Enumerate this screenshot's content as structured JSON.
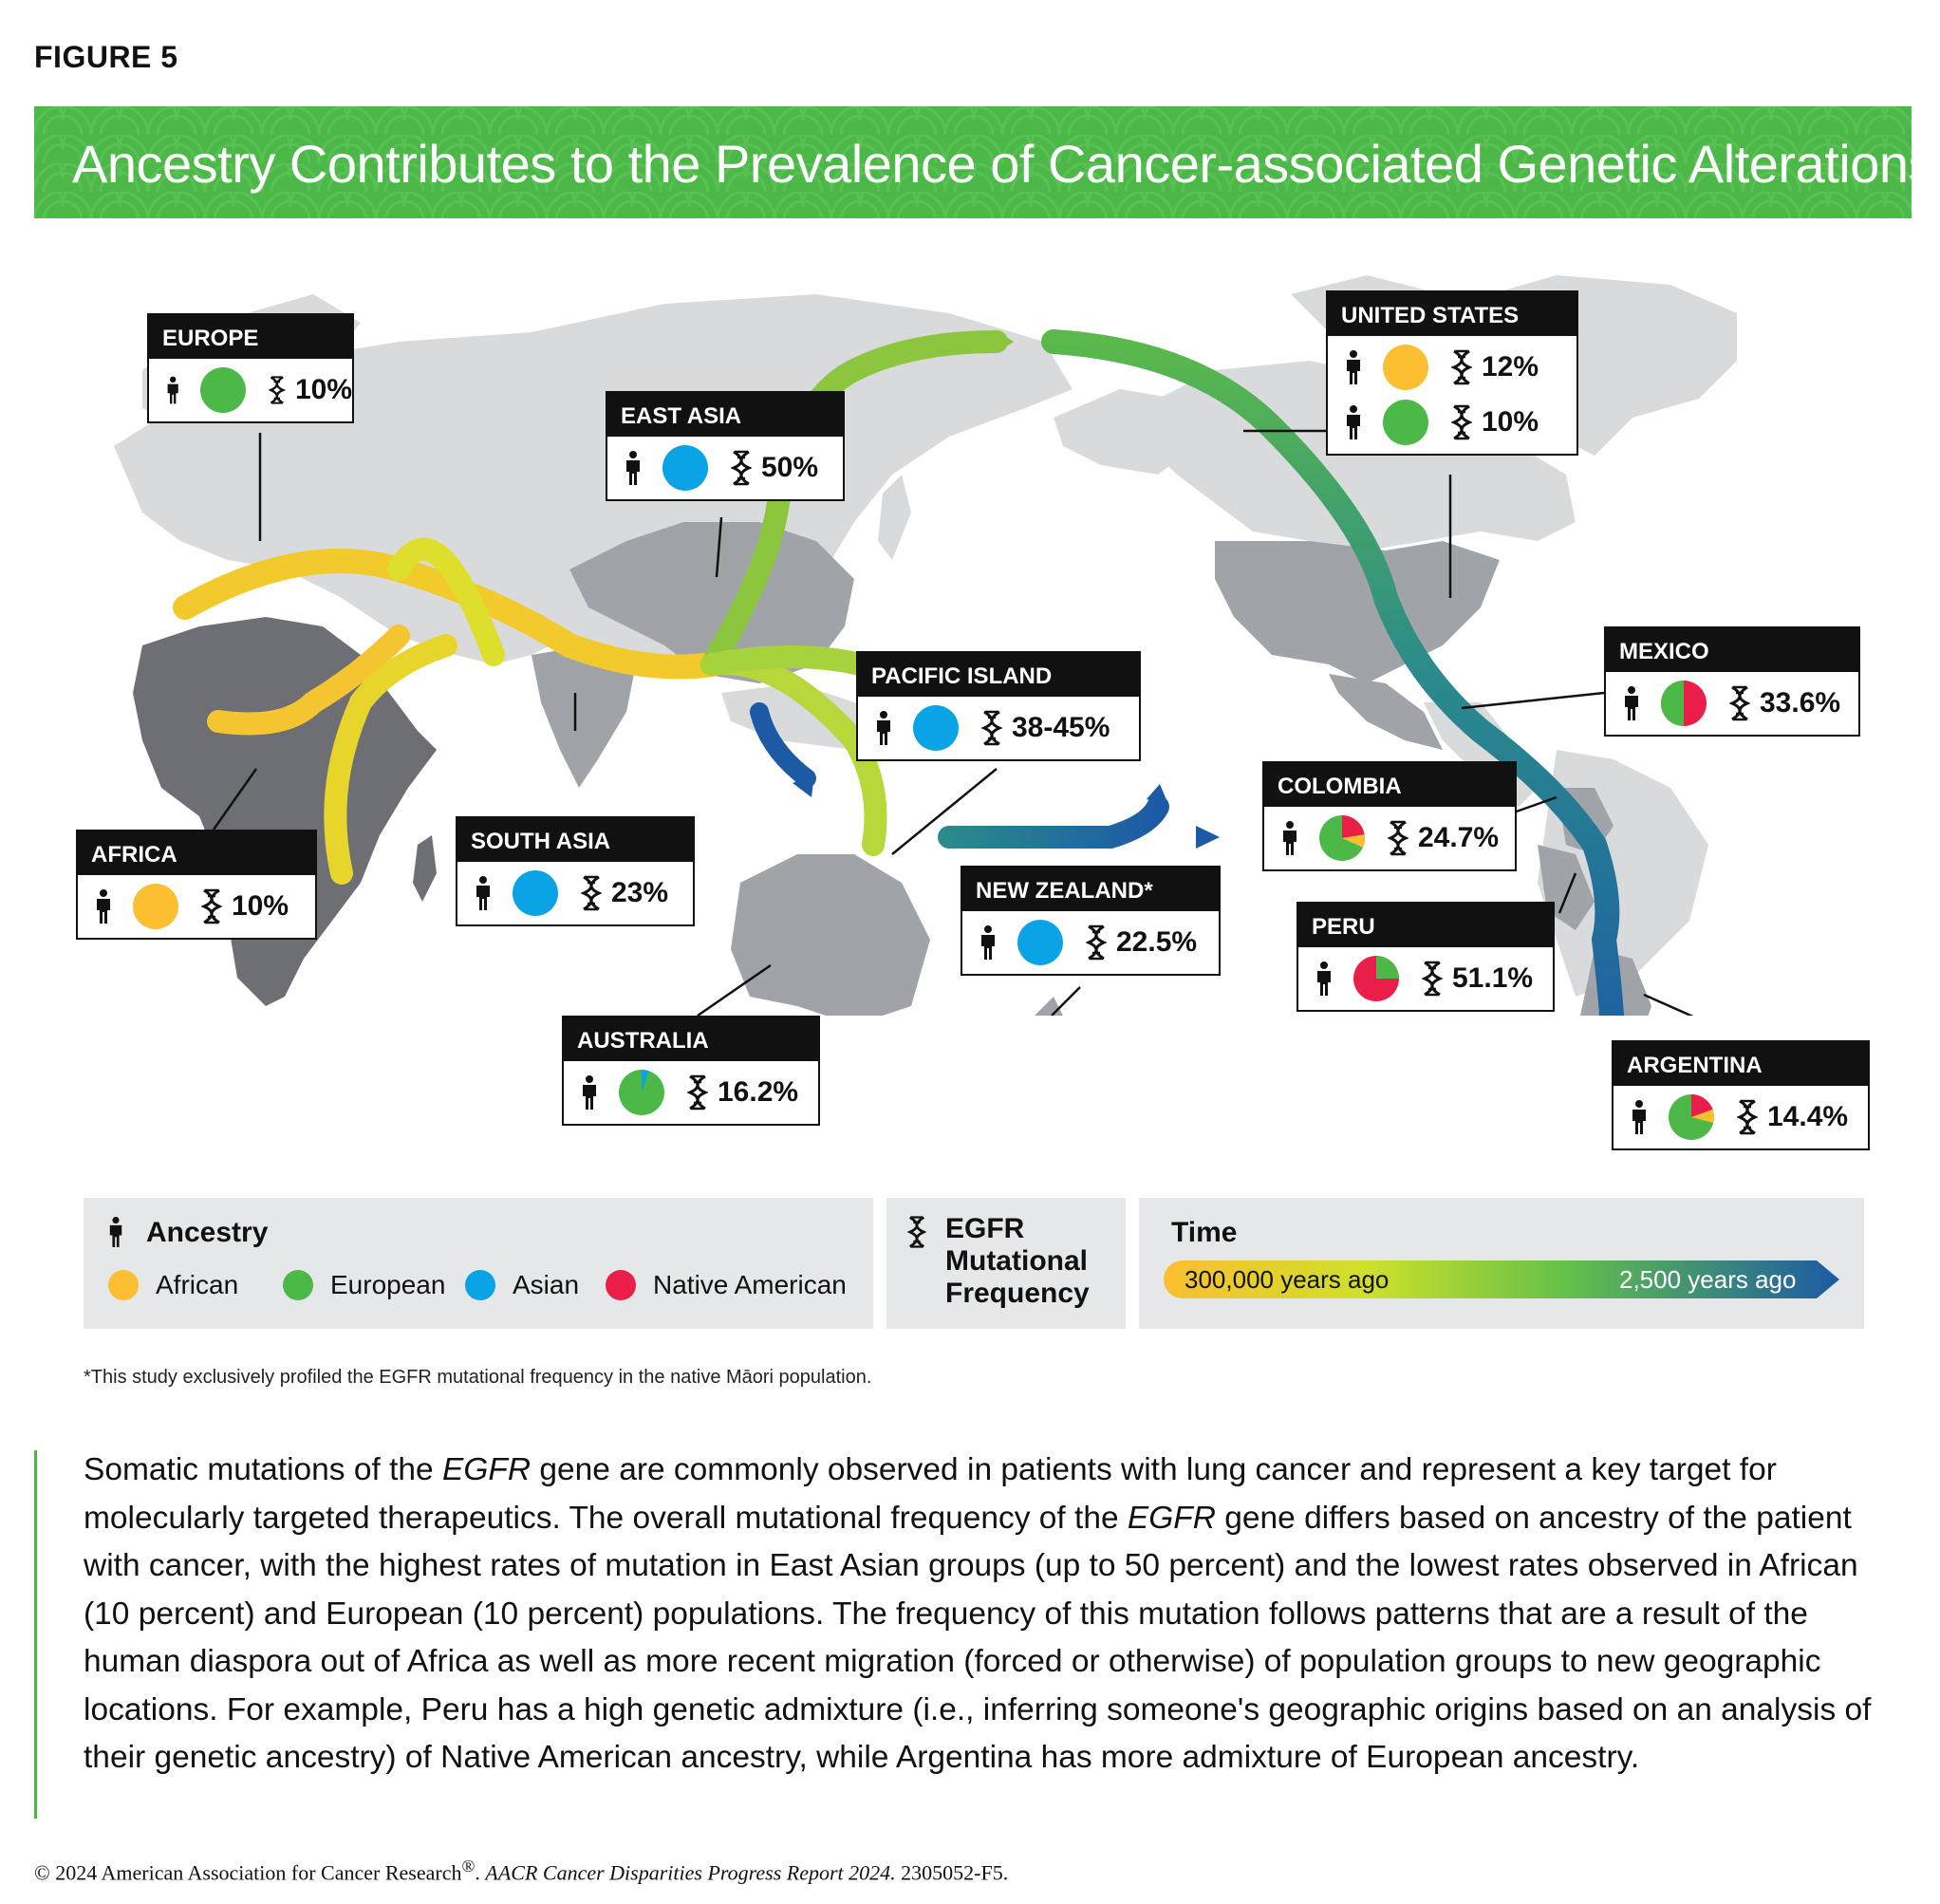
{
  "figure_label": "FIGURE 5",
  "title": "Ancestry Contributes to the Prevalence of Cancer-associated Genetic Alterations",
  "colors": {
    "banner": "#4cb848",
    "african": "#fbbf31",
    "european": "#4cb848",
    "asian": "#0aa3e6",
    "native_american": "#ea1f49",
    "land_light": "#d8dadc",
    "land_dark": "#6d6f75",
    "migration_start": "#fbbf31",
    "migration_end": "#1c5aa6"
  },
  "regions": [
    {
      "name": "EUROPE",
      "rows": [
        {
          "ancestry": "european",
          "freq": "10%"
        }
      ]
    },
    {
      "name": "EAST ASIA",
      "rows": [
        {
          "ancestry": "asian",
          "freq": "50%"
        }
      ]
    },
    {
      "name": "UNITED STATES",
      "rows": [
        {
          "ancestry": "african",
          "freq": "12%"
        },
        {
          "ancestry": "european",
          "freq": "10%"
        }
      ]
    },
    {
      "name": "PACIFIC ISLAND",
      "rows": [
        {
          "ancestry": "asian",
          "freq": "38-45%"
        }
      ]
    },
    {
      "name": "MEXICO",
      "rows": [
        {
          "ancestry": "european 50% / native american 50%",
          "freq": "33.6%"
        }
      ]
    },
    {
      "name": "COLOMBIA",
      "rows": [
        {
          "ancestry": "european 65% / african 10% / native american 25%",
          "freq": "24.7%"
        }
      ]
    },
    {
      "name": "AFRICA",
      "rows": [
        {
          "ancestry": "african",
          "freq": "10%"
        }
      ]
    },
    {
      "name": "SOUTH ASIA",
      "rows": [
        {
          "ancestry": "asian",
          "freq": "23%"
        }
      ]
    },
    {
      "name": "NEW ZEALAND*",
      "rows": [
        {
          "ancestry": "asian",
          "freq": "22.5%"
        }
      ]
    },
    {
      "name": "PERU",
      "rows": [
        {
          "ancestry": "european 25% / native american 75%",
          "freq": "51.1%"
        }
      ]
    },
    {
      "name": "AUSTRALIA",
      "rows": [
        {
          "ancestry": "european 95% / asian 5%",
          "freq": "16.2%"
        }
      ]
    },
    {
      "name": "ARGENTINA",
      "rows": [
        {
          "ancestry": "european 70% / african 10% / native american 20%",
          "freq": "14.4%"
        }
      ]
    }
  ],
  "legend": {
    "ancestry_title": "Ancestry",
    "items": [
      "African",
      "European",
      "Asian",
      "Native American"
    ],
    "egfr_title_lines": [
      "EGFR",
      "Mutational",
      "Frequency"
    ],
    "time_title": "Time",
    "time_start": "300,000 years ago",
    "time_end": "2,500 years ago"
  },
  "footnote": "*This study exclusively profiled the EGFR mutational frequency in the native Māori population.",
  "paragraph": {
    "p1": "Somatic mutations of the ",
    "gene1": "EGFR",
    "p2": " gene are commonly observed in patients with lung cancer and represent a key target for molecularly targeted therapeutics. The overall mutational frequency of the ",
    "gene2": "EGFR",
    "p3": " gene differs based on ancestry of the patient with cancer, with the highest rates of mutation in East Asian groups (up to 50 percent) and the lowest rates observed in African (10 percent) and European (10 percent) populations. The frequency of this mutation follows patterns that are a result of the human diaspora out of Africa as well as more recent migration (forced or otherwise) of population groups to new geographic locations. For example, Peru has a high genetic admixture (i.e., inferring someone's geographic origins based on an analysis of their genetic ancestry) of Native American ancestry, while Argentina has more admixture of European ancestry."
  },
  "copyright": {
    "c1": "© 2024 American Association for Cancer Research",
    "reg": "®",
    "c2": ". ",
    "report": "AACR Cancer Disparities Progress Report 2024.",
    "code": " 2305052-F5."
  }
}
